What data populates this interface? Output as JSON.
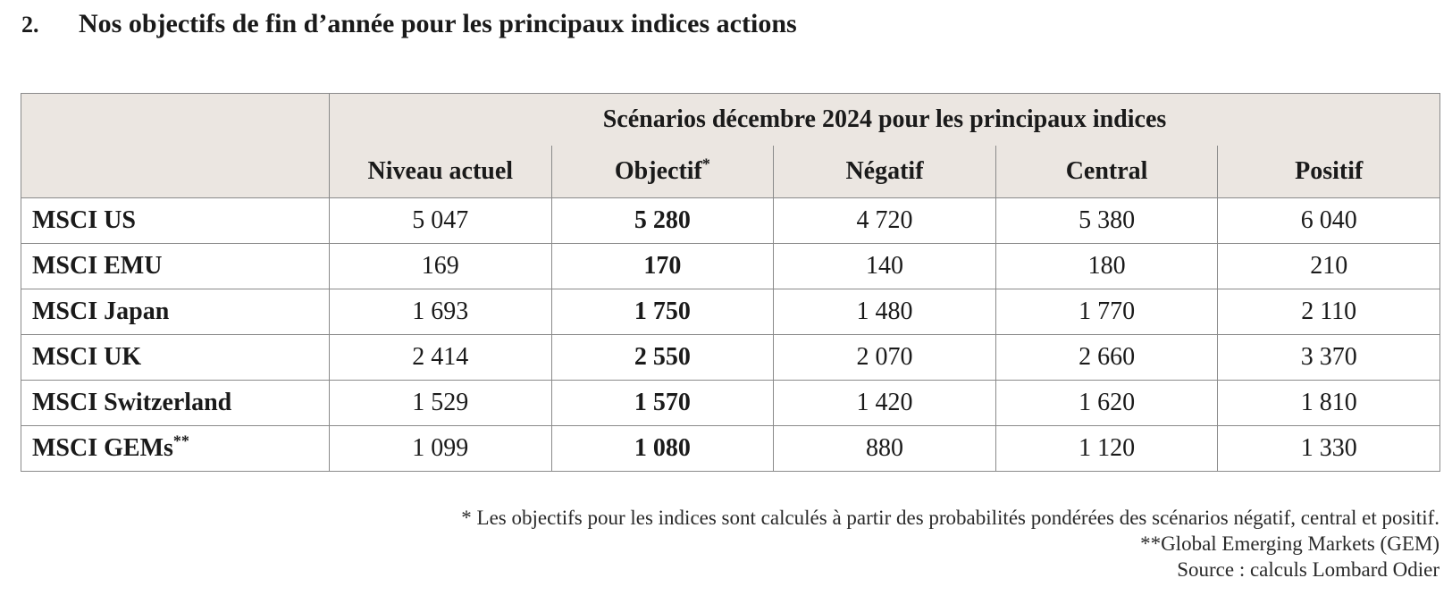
{
  "heading": {
    "number": "2.",
    "title": "Nos objectifs de fin d’année pour les principaux indices actions"
  },
  "table": {
    "group_header": "Scénarios décembre 2024 pour les principaux indices",
    "columns": [
      {
        "label": "Niveau actuel",
        "sup": ""
      },
      {
        "label": "Objectif",
        "sup": "*"
      },
      {
        "label": "Négatif",
        "sup": ""
      },
      {
        "label": "Central",
        "sup": ""
      },
      {
        "label": "Positif",
        "sup": ""
      }
    ],
    "rows": [
      {
        "label": "MSCI US",
        "sup": "",
        "values": [
          "5 047",
          "5 280",
          "4 720",
          "5 380",
          "6 040"
        ]
      },
      {
        "label": "MSCI EMU",
        "sup": "",
        "values": [
          "169",
          "170",
          "140",
          "180",
          "210"
        ]
      },
      {
        "label": "MSCI Japan",
        "sup": "",
        "values": [
          "1 693",
          "1 750",
          "1 480",
          "1 770",
          "2 110"
        ]
      },
      {
        "label": "MSCI UK",
        "sup": "",
        "values": [
          "2 414",
          "2 550",
          "2 070",
          "2 660",
          "3 370"
        ]
      },
      {
        "label": "MSCI Switzerland",
        "sup": "",
        "values": [
          "1 529",
          "1 570",
          "1 420",
          "1 620",
          "1 810"
        ]
      },
      {
        "label": "MSCI GEMs",
        "sup": "**",
        "values": [
          "1 099",
          "1 080",
          "880",
          "1 120",
          "1 330"
        ]
      }
    ]
  },
  "footnotes": [
    "* Les objectifs pour les indices sont calculés à partir des probabilités pondérées des scénarios négatif, central et positif.",
    "**Global Emerging Markets (GEM)",
    "Source : calculs Lombard Odier"
  ],
  "colors": {
    "header_bg": "#ebe6e1",
    "border": "#8a8a8a",
    "text": "#1a1a1a"
  }
}
